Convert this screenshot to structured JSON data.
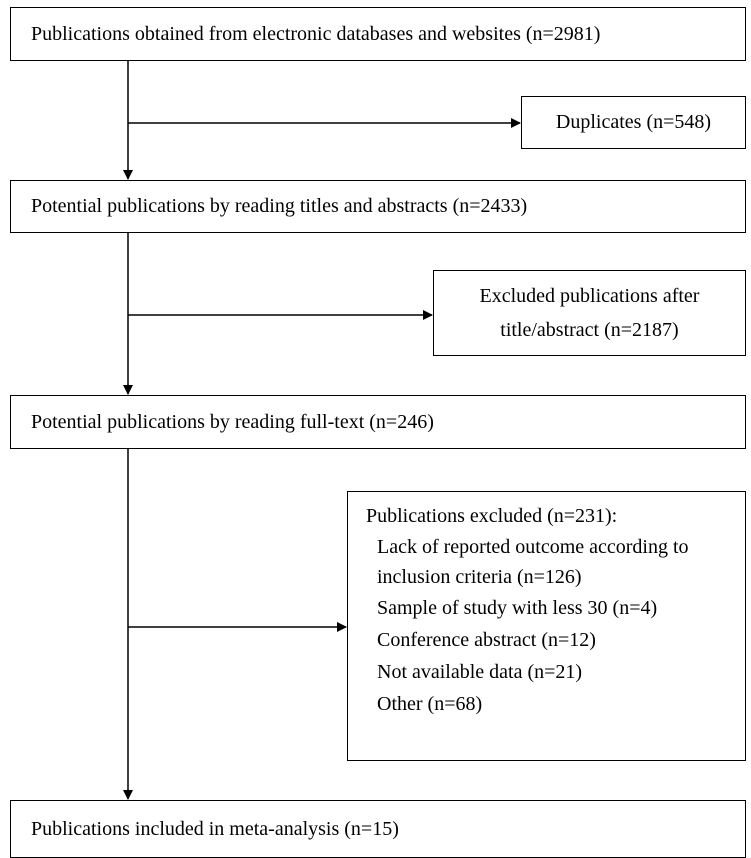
{
  "flowchart": {
    "box_databases": "Publications obtained from electronic databases and websites (n=2981)",
    "box_duplicates": "Duplicates (n=548)",
    "box_title_abstract": "Potential publications by reading titles and abstracts (n=2433)",
    "box_excluded_title_abstract_line1": "Excluded publications after",
    "box_excluded_title_abstract_line2": "title/abstract (n=2187)",
    "box_full_text": "Potential publications by reading full-text (n=246)",
    "box_excluded_full_text": {
      "title": "Publications excluded (n=231):",
      "reasons": [
        "Lack of reported outcome according to inclusion criteria (n=126)",
        "Sample of study with less 30 (n=4)",
        "Conference abstract (n=12)",
        "Not available data (n=21)",
        "Other (n=68)"
      ]
    },
    "box_included": "Publications included in meta-analysis (n=15)"
  }
}
